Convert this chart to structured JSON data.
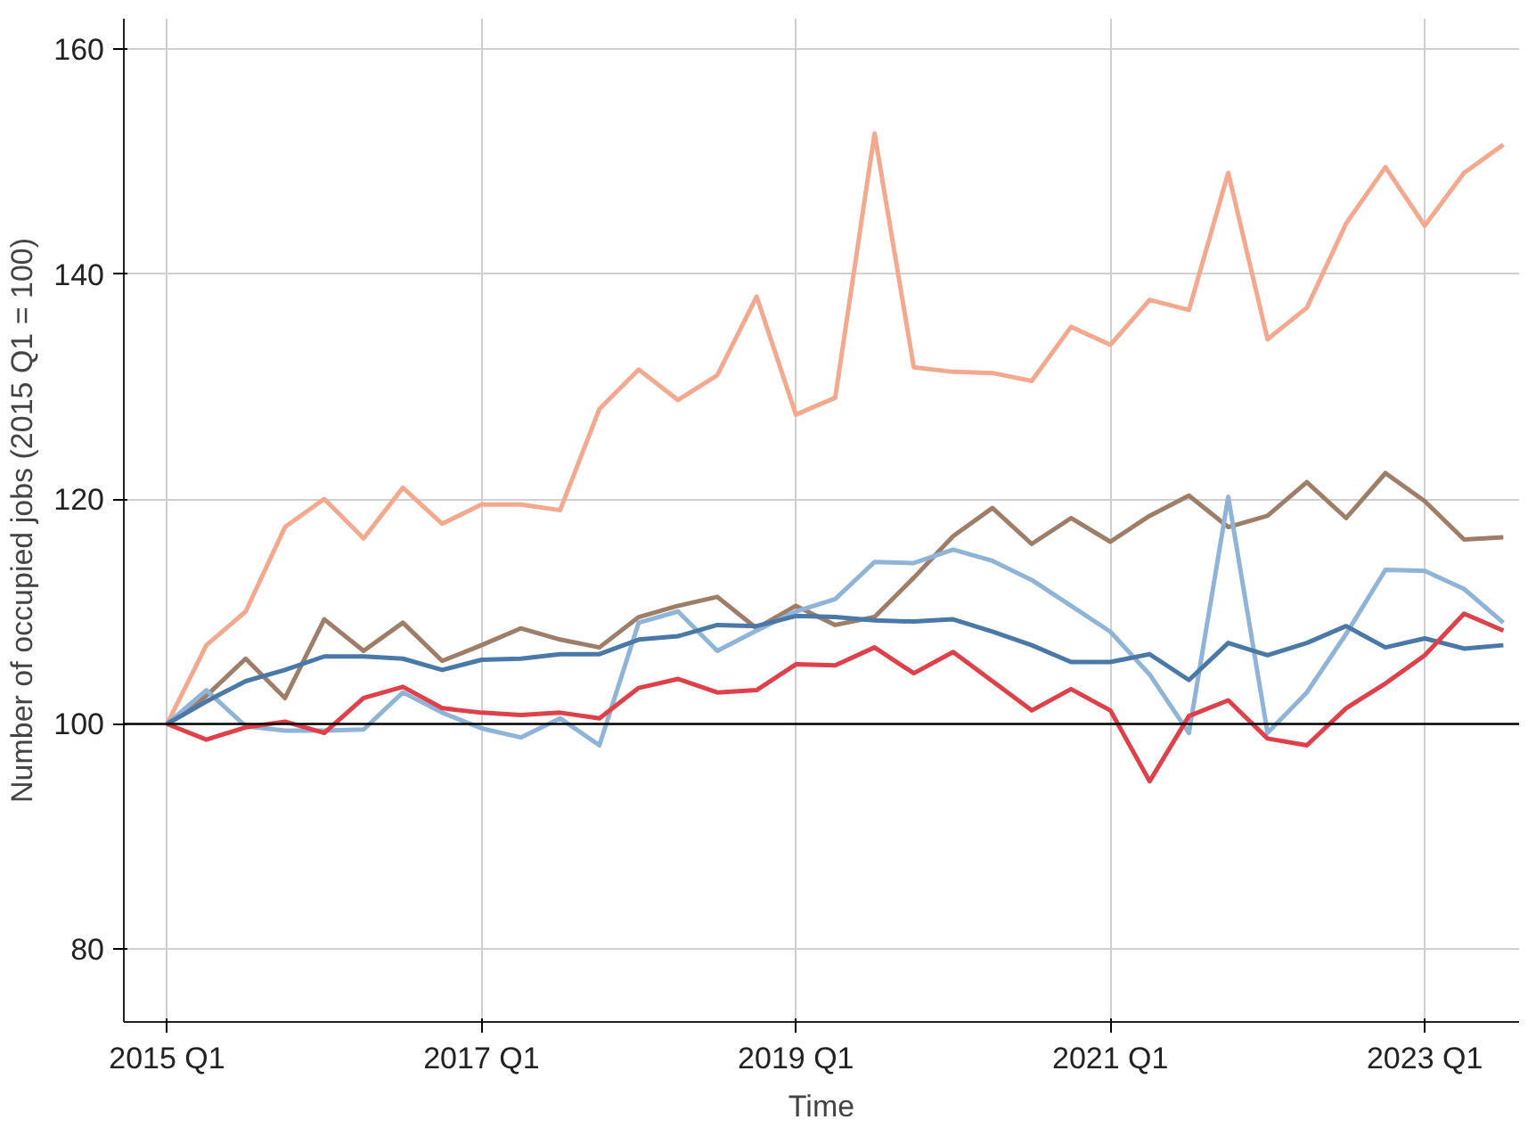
{
  "chart_data": {
    "type": "line",
    "xlabel": "Time",
    "ylabel": "Number of occupied jobs (2015 Q1 = 100)",
    "categories": [
      "2015 Q1",
      null,
      null,
      null,
      null,
      null,
      null,
      null,
      "2017 Q1",
      null,
      null,
      null,
      null,
      null,
      null,
      null,
      "2019 Q1",
      null,
      null,
      null,
      null,
      null,
      null,
      null,
      "2021 Q1",
      null,
      null,
      null,
      null,
      null,
      null,
      null,
      "2023 Q1",
      null,
      null
    ],
    "series": [
      {
        "color": "#f4a98f",
        "values": [
          100,
          107,
          110,
          117.5,
          120,
          116.5,
          121,
          117.8,
          119.5,
          119.5,
          119,
          128,
          131.5,
          128.8,
          131,
          138,
          127.5,
          129,
          152.5,
          131.7,
          131.3,
          131.2,
          130.5,
          135.3,
          133.7,
          137.7,
          136.8,
          149,
          134.2,
          137,
          144.5,
          149.5,
          144.3,
          149,
          151.5
        ]
      },
      {
        "color": "#9e7e68",
        "values": [
          100,
          102.5,
          105.8,
          102.3,
          109.3,
          106.5,
          109,
          105.6,
          107,
          108.5,
          107.5,
          106.8,
          109.5,
          110.5,
          111.3,
          108.5,
          110.5,
          108.8,
          109.5,
          113,
          116.7,
          119.2,
          116,
          118.3,
          116.2,
          118.5,
          120.3,
          117.5,
          118.5,
          121.5,
          118.3,
          122.3,
          119.8,
          116.4,
          116.6
        ]
      },
      {
        "color": "#8fb4d8",
        "values": [
          100,
          103,
          99.8,
          99.4,
          99.4,
          99.5,
          102.8,
          101,
          99.6,
          98.8,
          100.5,
          98.1,
          109,
          110,
          106.5,
          108.3,
          110,
          111.1,
          114.4,
          114.3,
          115.5,
          114.5,
          112.8,
          110.5,
          108.2,
          104.4,
          99.2,
          120.2,
          99.2,
          102.8,
          108,
          113.7,
          113.6,
          112,
          109
        ]
      },
      {
        "color": "#4a78a8",
        "values": [
          100,
          102,
          103.8,
          104.8,
          106,
          106,
          105.8,
          104.8,
          105.7,
          105.8,
          106.2,
          106.2,
          107.5,
          107.8,
          108.8,
          108.7,
          109.6,
          109.5,
          109.2,
          109.1,
          109.3,
          108.2,
          107,
          105.5,
          105.5,
          106.2,
          103.9,
          107.2,
          106.1,
          107.2,
          108.7,
          106.8,
          107.6,
          106.7,
          107
        ]
      },
      {
        "color": "#e0404a",
        "values": [
          100,
          98.6,
          99.7,
          100.2,
          99.2,
          102.3,
          103.3,
          101.4,
          101,
          100.8,
          101,
          100.5,
          103.2,
          104,
          102.8,
          103,
          105.3,
          105.2,
          106.8,
          104.5,
          106.4,
          103.8,
          101.2,
          103.1,
          101.2,
          94.9,
          100.7,
          102.1,
          98.7,
          98.1,
          101.4,
          103.6,
          106.1,
          109.8,
          108.3
        ]
      }
    ],
    "ylim": [
      73.5,
      162.7
    ],
    "yticks": [
      80,
      100,
      120,
      140,
      160
    ],
    "ref_lines": [
      {
        "axis": "y",
        "value": 100,
        "color": "#000000"
      }
    ],
    "grid": true,
    "line_style": "solid"
  }
}
